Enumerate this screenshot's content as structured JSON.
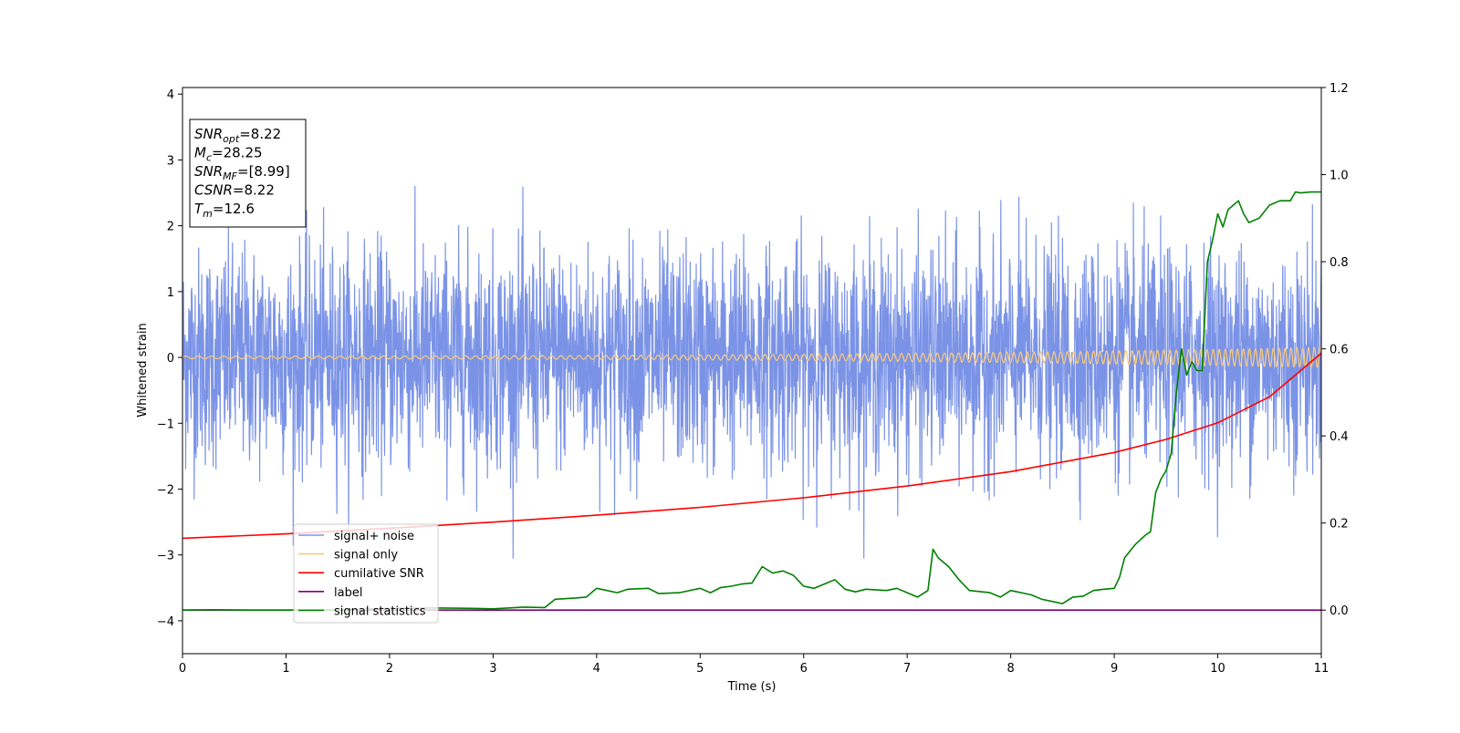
{
  "chart_data": {
    "type": "line",
    "xlabel": "Time (s)",
    "ylabel": "Whitened strain",
    "xlim": [
      0,
      11
    ],
    "ylim_left": [
      -4.5,
      4.1
    ],
    "ylim_right": [
      -0.1,
      1.2
    ],
    "x_ticks": [
      "0",
      "1",
      "2",
      "3",
      "4",
      "5",
      "6",
      "7",
      "8",
      "9",
      "10",
      "11"
    ],
    "y_left_ticks": [
      "4",
      "3",
      "2",
      "1",
      "0",
      "−1",
      "−2",
      "−3",
      "−4"
    ],
    "y_right_ticks": [
      "1.2",
      "1.0",
      "0.8",
      "0.6",
      "0.4",
      "0.2",
      "0.0"
    ],
    "grid": false,
    "legend_position": "lower-left",
    "annotation_box": [
      {
        "sym": "SNR",
        "sub": "opt",
        "val": "=8.22"
      },
      {
        "sym": "M",
        "sub": "c",
        "val": "=28.25"
      },
      {
        "sym": "SNR",
        "sub": "MF",
        "val": "=[8.99]"
      },
      {
        "sym": "CSNR",
        "sub": "",
        "val": "=8.22"
      },
      {
        "sym": "T",
        "sub": "m",
        "val": "=12.6"
      }
    ],
    "series": [
      {
        "name": "signal+ noise",
        "axis": "left",
        "color": "#7b93e6",
        "style": "dense noisy trace, amplitude roughly ±1.5 with spikes to about ±2.5",
        "envelope_max": 2.6,
        "envelope_min": -3.05
      },
      {
        "name": "signal only",
        "axis": "left",
        "color": "#f5c77e",
        "style": "chirp oscillation around 0, amplitude growing from 0.02 to 0.15",
        "amplitude_start": 0.02,
        "amplitude_end": 0.15
      },
      {
        "name": "cumilative SNR",
        "axis": "right",
        "color": "#ff0000",
        "x": [
          0,
          1,
          2,
          3,
          4,
          5,
          6,
          7,
          8,
          9,
          9.5,
          10,
          10.5,
          11
        ],
        "y": [
          0.165,
          0.175,
          0.188,
          0.202,
          0.218,
          0.236,
          0.258,
          0.285,
          0.318,
          0.362,
          0.392,
          0.43,
          0.49,
          0.59
        ]
      },
      {
        "name": "label",
        "axis": "right",
        "color": "#800080",
        "x": [
          0,
          11
        ],
        "y": [
          0.0,
          0.0
        ]
      },
      {
        "name": "signal statistics",
        "axis": "right",
        "color": "#008000",
        "x": [
          0,
          0.3,
          0.6,
          1.0,
          1.5,
          2.0,
          2.4,
          2.8,
          3.0,
          3.3,
          3.5,
          3.6,
          3.8,
          3.9,
          4.0,
          4.1,
          4.2,
          4.3,
          4.5,
          4.6,
          4.8,
          5.0,
          5.1,
          5.2,
          5.3,
          5.4,
          5.5,
          5.6,
          5.7,
          5.8,
          5.9,
          6.0,
          6.1,
          6.2,
          6.3,
          6.4,
          6.5,
          6.6,
          6.8,
          6.9,
          7.0,
          7.1,
          7.2,
          7.25,
          7.3,
          7.4,
          7.5,
          7.6,
          7.8,
          7.9,
          8.0,
          8.2,
          8.3,
          8.4,
          8.5,
          8.6,
          8.7,
          8.8,
          8.9,
          9.0,
          9.05,
          9.1,
          9.2,
          9.3,
          9.35,
          9.4,
          9.45,
          9.5,
          9.55,
          9.6,
          9.65,
          9.7,
          9.75,
          9.8,
          9.85,
          9.9,
          9.95,
          10.0,
          10.05,
          10.1,
          10.15,
          10.2,
          10.25,
          10.3,
          10.4,
          10.5,
          10.55,
          10.6,
          10.7,
          10.75,
          10.8,
          10.9,
          10.95,
          11.0
        ],
        "y": [
          0.0,
          0.001,
          0.0,
          0.0,
          0.0,
          0.004,
          0.005,
          0.004,
          0.003,
          0.007,
          0.006,
          0.025,
          0.028,
          0.03,
          0.05,
          0.045,
          0.04,
          0.048,
          0.05,
          0.038,
          0.04,
          0.05,
          0.04,
          0.052,
          0.055,
          0.06,
          0.062,
          0.1,
          0.085,
          0.09,
          0.08,
          0.055,
          0.05,
          0.06,
          0.07,
          0.048,
          0.042,
          0.048,
          0.045,
          0.05,
          0.04,
          0.03,
          0.045,
          0.14,
          0.12,
          0.1,
          0.07,
          0.045,
          0.04,
          0.03,
          0.045,
          0.035,
          0.025,
          0.02,
          0.015,
          0.03,
          0.032,
          0.045,
          0.048,
          0.05,
          0.075,
          0.12,
          0.15,
          0.172,
          0.18,
          0.27,
          0.3,
          0.32,
          0.36,
          0.5,
          0.6,
          0.54,
          0.57,
          0.55,
          0.55,
          0.8,
          0.85,
          0.91,
          0.88,
          0.92,
          0.93,
          0.94,
          0.91,
          0.89,
          0.9,
          0.93,
          0.935,
          0.94,
          0.94,
          0.96,
          0.958,
          0.96,
          0.96,
          0.96
        ]
      }
    ]
  }
}
